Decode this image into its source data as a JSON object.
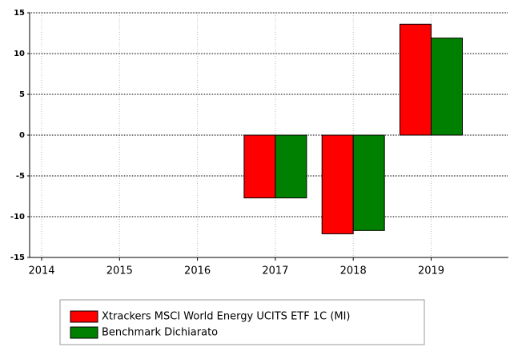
{
  "chart_data": {
    "type": "bar",
    "categories": [
      "2014",
      "2015",
      "2016",
      "2017",
      "2018",
      "2019"
    ],
    "series": [
      {
        "name": "Xtrackers MSCI World Energy UCITS ETF 1C (MI)",
        "color": "#ff0000",
        "values": [
          null,
          null,
          null,
          -7.7,
          -12.1,
          13.6
        ]
      },
      {
        "name": "Benchmark Dichiarato",
        "color": "#008000",
        "values": [
          null,
          null,
          null,
          -7.7,
          -11.7,
          11.9
        ]
      }
    ],
    "ylim": [
      -15,
      15
    ],
    "yticks": [
      -15,
      -10,
      -5,
      0,
      5,
      10,
      15
    ],
    "grid": true
  }
}
